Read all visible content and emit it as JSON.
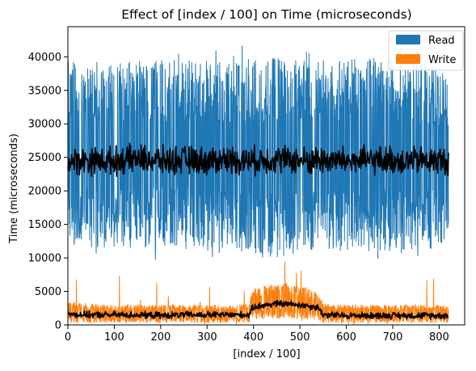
{
  "chart_data": {
    "type": "area",
    "title": "Effect of [index / 100] on Time (microseconds)",
    "xlabel": "[index / 100]",
    "ylabel": "Time (microseconds)",
    "xlim": [
      0,
      855
    ],
    "ylim": [
      0,
      44500
    ],
    "xticks": [
      0,
      100,
      200,
      300,
      400,
      500,
      600,
      700,
      800
    ],
    "yticks": [
      0,
      5000,
      10000,
      15000,
      20000,
      25000,
      30000,
      35000,
      40000
    ],
    "x_range": [
      0,
      820
    ],
    "grid": false,
    "legend_position": "top-right",
    "series": [
      {
        "name": "Read",
        "color": "#1f77b4",
        "envelope": {
          "x": [
            0,
            50,
            100,
            150,
            200,
            250,
            300,
            350,
            400,
            450,
            500,
            550,
            600,
            650,
            700,
            750,
            800,
            820
          ],
          "upper": [
            39500,
            39000,
            39000,
            39500,
            39500,
            39500,
            39500,
            39000,
            40000,
            40000,
            39500,
            39500,
            39500,
            40000,
            39500,
            39000,
            38500,
            36500
          ],
          "lower": [
            12000,
            11500,
            11500,
            11500,
            11500,
            11500,
            11500,
            11000,
            10500,
            10000,
            10500,
            11000,
            11000,
            11000,
            11000,
            11000,
            11500,
            13000
          ],
          "peak_high": 42000,
          "peak_low": 9500
        },
        "mean": {
          "x": [
            0,
            50,
            100,
            150,
            200,
            250,
            300,
            350,
            400,
            450,
            500,
            550,
            600,
            650,
            700,
            750,
            800,
            820
          ],
          "values": [
            24500,
            24500,
            24500,
            24800,
            24500,
            24600,
            24500,
            24700,
            24500,
            24800,
            24500,
            24600,
            24500,
            24500,
            24600,
            24500,
            24500,
            24400
          ],
          "spread": 2500,
          "color": "#000000"
        }
      },
      {
        "name": "Write",
        "color": "#ff7f0e",
        "envelope": {
          "x": [
            0,
            50,
            100,
            150,
            200,
            250,
            300,
            350,
            390,
            400,
            450,
            500,
            540,
            550,
            600,
            650,
            700,
            750,
            800,
            820
          ],
          "upper": [
            3500,
            3200,
            3000,
            3000,
            3000,
            3000,
            3000,
            3000,
            3200,
            5500,
            6500,
            6000,
            5000,
            3200,
            3000,
            3000,
            3000,
            3000,
            3000,
            2800
          ],
          "lower": [
            300,
            300,
            300,
            300,
            300,
            300,
            300,
            300,
            300,
            800,
            900,
            800,
            700,
            300,
            300,
            300,
            300,
            300,
            300,
            300
          ],
          "peak_high": 9500,
          "peak_low": 0
        },
        "mean": {
          "x": [
            0,
            50,
            100,
            150,
            200,
            250,
            300,
            350,
            390,
            400,
            450,
            500,
            540,
            550,
            600,
            650,
            700,
            750,
            800,
            820
          ],
          "values": [
            1600,
            1500,
            1500,
            1500,
            1400,
            1500,
            1500,
            1500,
            1500,
            2700,
            3200,
            3000,
            2600,
            1500,
            1400,
            1400,
            1400,
            1400,
            1400,
            1400
          ],
          "spread": 600,
          "color": "#000000"
        }
      }
    ]
  }
}
